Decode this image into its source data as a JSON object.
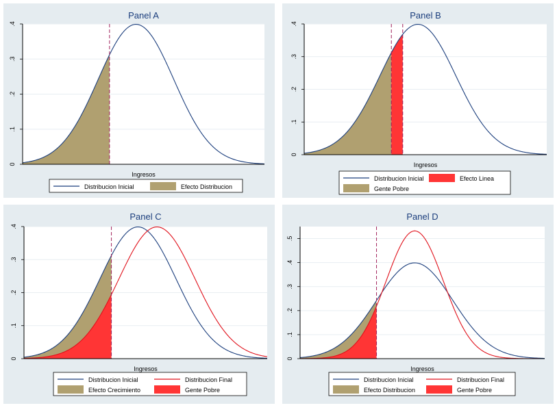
{
  "chart_data": [
    {
      "type": "line",
      "title": "Panel A",
      "xlabel": "Ingresos",
      "ylabel": "",
      "xlim": [
        -3,
        3.4
      ],
      "ylim": [
        0,
        0.4
      ],
      "yticks": [
        "0",
        ".1",
        ".2",
        ".3",
        ".4"
      ],
      "poverty_line": -0.7,
      "series": [
        {
          "name": "Distribucion Inicial",
          "kind": "density",
          "mean": 0,
          "sd": 1,
          "color": "#1a3d7c"
        }
      ],
      "areas": [
        {
          "name": "Efecto Distribucion",
          "curve": 0,
          "from": -3,
          "to": -0.7,
          "color": "#b0a070"
        }
      ],
      "legend": {
        "position": "bottom",
        "entries": [
          {
            "label": "Distribucion Inicial",
            "type": "line",
            "color": "#1a3d7c"
          },
          {
            "label": "Efecto Distribucion",
            "type": "fill",
            "color": "#b0a070"
          }
        ]
      }
    },
    {
      "type": "line",
      "title": "Panel B",
      "xlabel": "Ingresos",
      "ylabel": "",
      "xlim": [
        -3,
        3.4
      ],
      "ylim": [
        0,
        0.4
      ],
      "yticks": [
        "0",
        ".1",
        ".2",
        ".3",
        ".4"
      ],
      "poverty_line": -0.7,
      "second_line": -0.4,
      "series": [
        {
          "name": "Distribucion Inicial",
          "kind": "density",
          "mean": 0,
          "sd": 1,
          "color": "#1a3d7c"
        }
      ],
      "areas": [
        {
          "name": "Gente Pobre",
          "curve": 0,
          "from": -3,
          "to": -0.7,
          "color": "#b0a070"
        },
        {
          "name": "Efecto Linea",
          "curve": 0,
          "from": -0.7,
          "to": -0.4,
          "color": "#ff3535"
        }
      ],
      "legend": {
        "position": "bottom",
        "entries": [
          {
            "label": "Distribucion Inicial",
            "type": "line",
            "color": "#1a3d7c"
          },
          {
            "label": "Efecto Linea",
            "type": "fill",
            "color": "#ff3535"
          },
          {
            "label": "Gente Pobre",
            "type": "fill",
            "color": "#b0a070"
          }
        ]
      }
    },
    {
      "type": "line",
      "title": "Panel C",
      "xlabel": "Ingresos",
      "ylabel": "",
      "xlim": [
        -3,
        3.4
      ],
      "ylim": [
        0,
        0.4
      ],
      "yticks": [
        "0",
        ".1",
        ".2",
        ".3",
        ".4"
      ],
      "poverty_line": -0.7,
      "series": [
        {
          "name": "Distribucion Inicial",
          "kind": "density",
          "mean": 0,
          "sd": 1,
          "color": "#1a3d7c"
        },
        {
          "name": "Distribucion Final",
          "kind": "density",
          "mean": 0.5,
          "sd": 1,
          "color": "#e0101a"
        }
      ],
      "areas": [
        {
          "name": "Efecto Crecimiento",
          "curve": 0,
          "from": -3,
          "to": -0.7,
          "color": "#b0a070"
        },
        {
          "name": "Gente Pobre",
          "curve": 1,
          "from": -3,
          "to": -0.7,
          "color": "#ff3535"
        }
      ],
      "legend": {
        "position": "bottom",
        "entries": [
          {
            "label": "Distribucion Inicial",
            "type": "line",
            "color": "#1a3d7c"
          },
          {
            "label": "Distribucion Final",
            "type": "line",
            "color": "#e0101a"
          },
          {
            "label": "Efecto Crecimiento",
            "type": "fill",
            "color": "#b0a070"
          },
          {
            "label": "Gente Pobre",
            "type": "fill",
            "color": "#ff3535"
          }
        ]
      }
    },
    {
      "type": "line",
      "title": "Panel D",
      "xlabel": "Ingresos",
      "ylabel": "",
      "xlim": [
        -3,
        3.4
      ],
      "ylim": [
        0,
        0.55
      ],
      "yticks": [
        "0",
        ".1",
        ".2",
        ".3",
        ".4",
        ".5"
      ],
      "poverty_line": -1,
      "series": [
        {
          "name": "Distribucion Inicial",
          "kind": "density",
          "mean": 0,
          "sd": 1,
          "color": "#1a3d7c"
        },
        {
          "name": "Distribucion Final",
          "kind": "density",
          "mean": 0,
          "sd": 0.75,
          "color": "#e0101a"
        }
      ],
      "areas": [
        {
          "name": "Efecto Distribucion",
          "curve": 0,
          "from": -3,
          "to": -1,
          "color": "#b0a070"
        },
        {
          "name": "Gente Pobre",
          "curve": 1,
          "from": -3,
          "to": -1,
          "color": "#ff3535"
        }
      ],
      "legend": {
        "position": "bottom",
        "entries": [
          {
            "label": "Distribucion Inicial",
            "type": "line",
            "color": "#1a3d7c"
          },
          {
            "label": "Distribucion Final",
            "type": "line",
            "color": "#e0101a"
          },
          {
            "label": "Efecto Distribucion",
            "type": "fill",
            "color": "#b0a070"
          },
          {
            "label": "Gente Pobre",
            "type": "fill",
            "color": "#ff3535"
          }
        ]
      }
    }
  ],
  "style": {
    "panel_background": "#e5ecf0",
    "plot_background": "#ffffff",
    "grid_color": "#e8eef2",
    "poverty_line_color": "#a0205a"
  }
}
